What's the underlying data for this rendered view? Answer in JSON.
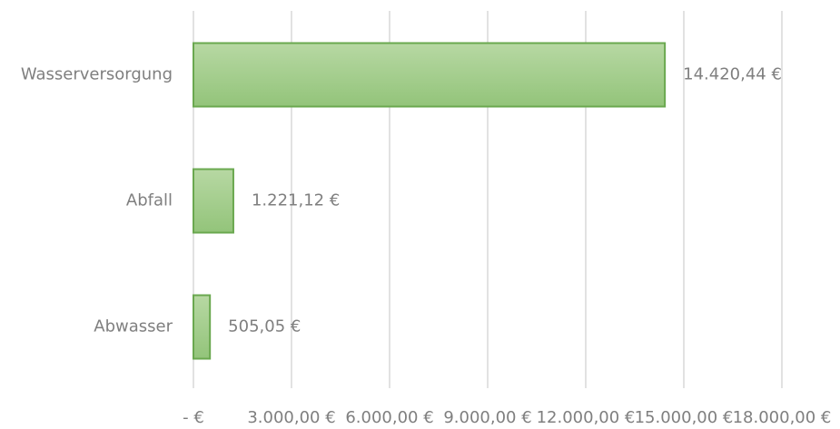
{
  "chart_data": {
    "type": "bar",
    "orientation": "horizontal",
    "categories": [
      "Wasserversorgung",
      "Abfall",
      "Abwasser"
    ],
    "values": [
      14420.44,
      1221.12,
      505.05
    ],
    "value_labels": [
      "14.420,44 €",
      "1.221,12 €",
      "505,05 €"
    ],
    "color": "#a5cd8c",
    "xlim": [
      0,
      18000
    ],
    "xticks": [
      {
        "value": 0,
        "label": "-  €"
      },
      {
        "value": 3000,
        "label": "3.000,00 €"
      },
      {
        "value": 6000,
        "label": "6.000,00 €"
      },
      {
        "value": 9000,
        "label": "9.000,00 €"
      },
      {
        "value": 12000,
        "label": "12.000,00 €"
      },
      {
        "value": 15000,
        "label": "15.000,00 €"
      },
      {
        "value": 18000,
        "label": "18.000,00 €"
      }
    ],
    "grid": true
  }
}
